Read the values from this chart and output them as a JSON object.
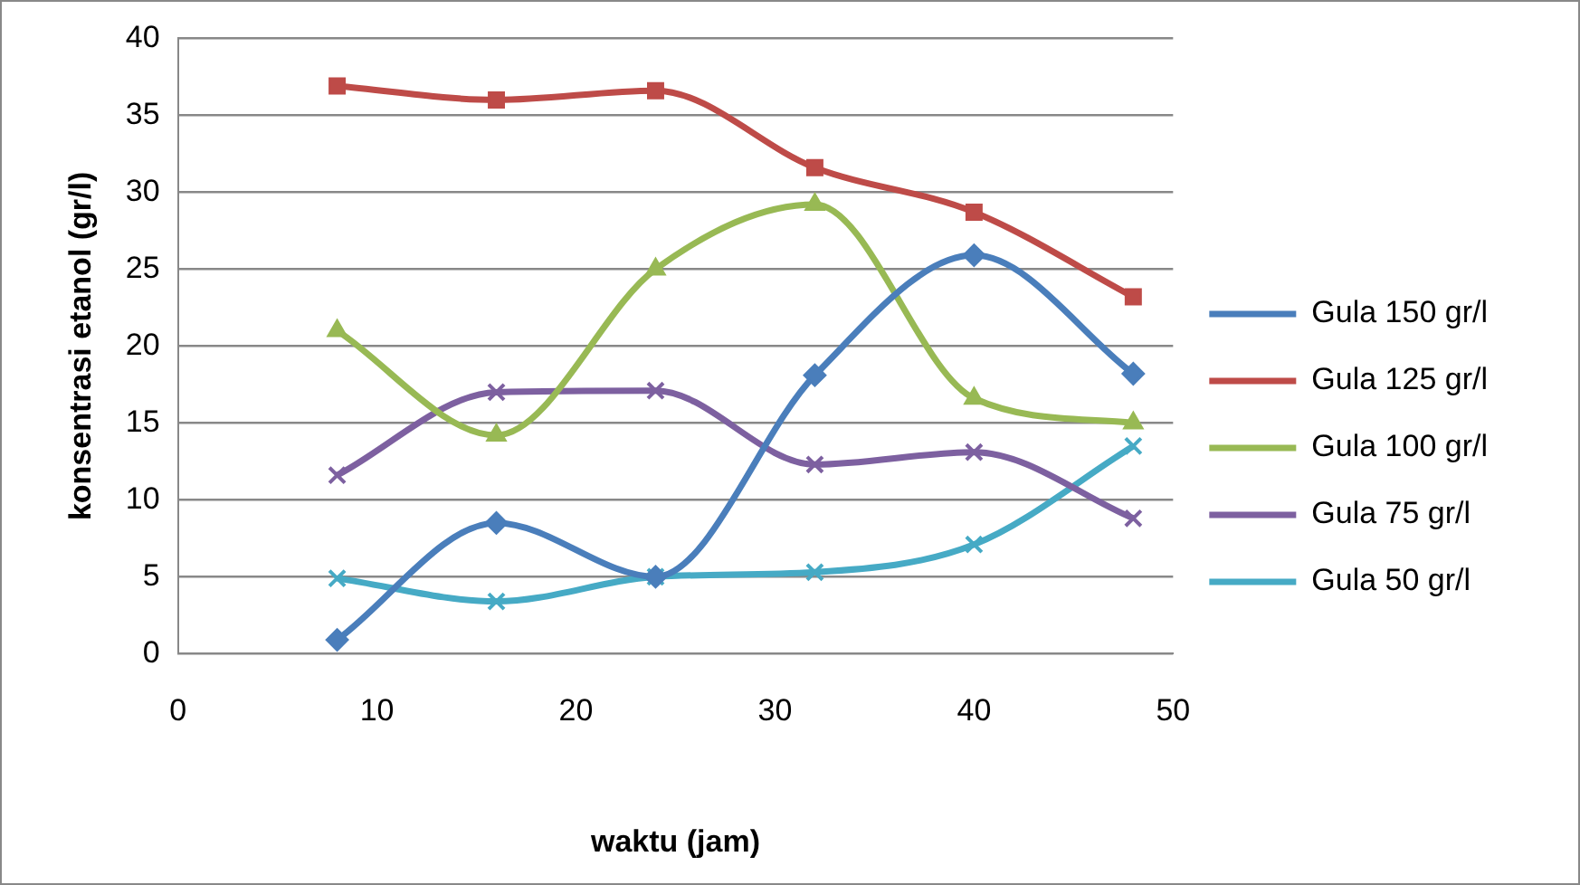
{
  "chart_data": {
    "type": "line",
    "xlabel": "waktu (jam)",
    "ylabel": "konsentrasi etanol (gr/l)",
    "x": [
      8,
      16,
      24,
      32,
      40,
      48
    ],
    "xlim": [
      0,
      50
    ],
    "xticks": [
      0,
      10,
      20,
      30,
      40,
      50
    ],
    "ylim": [
      0,
      40
    ],
    "yticks": [
      0,
      5,
      10,
      15,
      20,
      25,
      30,
      35,
      40
    ],
    "grid": "y",
    "legend": "right",
    "series": [
      {
        "name": "Gula 150 gr/l",
        "color": "#4a7ebb",
        "marker": "diamond",
        "values": [
          0.9,
          8.5,
          5,
          18.1,
          25.9,
          18.2
        ]
      },
      {
        "name": "Gula 125 gr/l",
        "color": "#be4b48",
        "marker": "square",
        "values": [
          36.9,
          36,
          36.6,
          31.6,
          28.7,
          23.2
        ]
      },
      {
        "name": "Gula 100 gr/l",
        "color": "#98b954",
        "marker": "triangle",
        "values": [
          21,
          14.2,
          25,
          29.2,
          16.6,
          15
        ]
      },
      {
        "name": "Gula 75 gr/l",
        "color": "#7d60a0",
        "marker": "cross",
        "values": [
          11.6,
          17,
          17.1,
          12.3,
          13.1,
          8.8
        ]
      },
      {
        "name": "Gula 50 gr/l",
        "color": "#46aac5",
        "marker": "cross",
        "values": [
          4.9,
          3.4,
          5,
          5.3,
          7.1,
          13.5
        ]
      }
    ]
  }
}
